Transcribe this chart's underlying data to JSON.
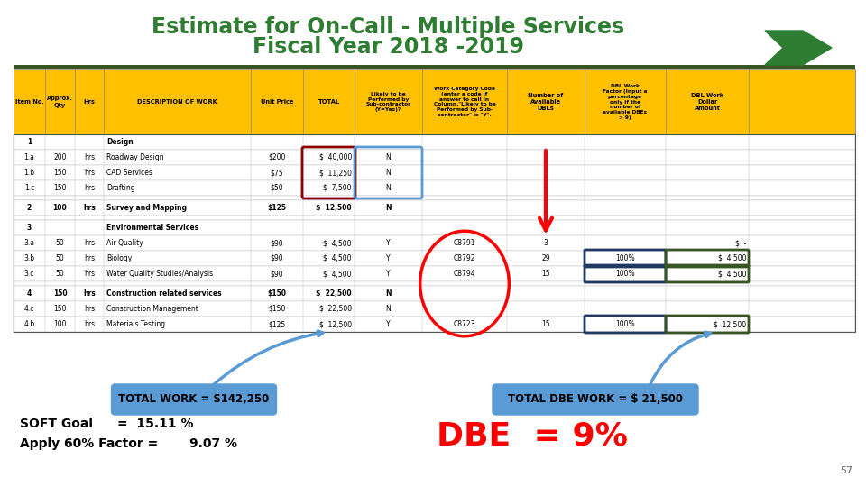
{
  "title_line1": "Estimate for On-Call - Multiple Services",
  "title_line2": "Fiscal Year 2018 -2019",
  "title_color": "#2E7D32",
  "bg_color": "#FFFFFF",
  "header_bg": "#FFC000",
  "rows": [
    {
      "item": "1",
      "qty": "",
      "hrs": "",
      "desc": "Design",
      "price": "",
      "total": "",
      "sub": "",
      "code": "",
      "avail": "",
      "factor": "",
      "amount": "",
      "bold": true
    },
    {
      "item": "1.a",
      "qty": "200",
      "hrs": "hrs",
      "desc": "Roadway Design",
      "price": "$200",
      "total": "$  40,000",
      "sub": "N",
      "code": "",
      "avail": "",
      "factor": "",
      "amount": ""
    },
    {
      "item": "1.b",
      "qty": "150",
      "hrs": "hrs",
      "desc": "CAD Services",
      "price": "$75",
      "total": "$  11,250",
      "sub": "N",
      "code": "",
      "avail": "",
      "factor": "",
      "amount": ""
    },
    {
      "item": "1.c",
      "qty": "150",
      "hrs": "hrs",
      "desc": "Drafting",
      "price": "$50",
      "total": "$  7,500",
      "sub": "N",
      "code": "",
      "avail": "",
      "factor": "",
      "amount": ""
    },
    {
      "item": "",
      "qty": "",
      "hrs": "",
      "desc": "",
      "price": "",
      "total": "",
      "sub": "",
      "code": "",
      "avail": "",
      "factor": "",
      "amount": "",
      "spacer": true
    },
    {
      "item": "2",
      "qty": "100",
      "hrs": "hrs",
      "desc": "Survey and Mapping",
      "price": "$125",
      "total": "$  12,500",
      "sub": "N",
      "code": "",
      "avail": "",
      "factor": "",
      "amount": "",
      "bold": true
    },
    {
      "item": "",
      "qty": "",
      "hrs": "",
      "desc": "",
      "price": "",
      "total": "",
      "sub": "",
      "code": "",
      "avail": "",
      "factor": "",
      "amount": "",
      "spacer": true
    },
    {
      "item": "3",
      "qty": "",
      "hrs": "",
      "desc": "Environmental Services",
      "price": "",
      "total": "",
      "sub": "",
      "code": "",
      "avail": "",
      "factor": "",
      "amount": "",
      "bold": true
    },
    {
      "item": "3.a",
      "qty": "50",
      "hrs": "hrs",
      "desc": "Air Quality",
      "price": "$90",
      "total": "$  4,500",
      "sub": "Y",
      "code": "C8791",
      "avail": "3",
      "factor": "",
      "amount": "$  -"
    },
    {
      "item": "3.b",
      "qty": "50",
      "hrs": "hrs",
      "desc": "Biology",
      "price": "$90",
      "total": "$  4,500",
      "sub": "Y",
      "code": "C8792",
      "avail": "29",
      "factor": "100%",
      "amount": "$  4,500"
    },
    {
      "item": "3.c",
      "qty": "50",
      "hrs": "hrs",
      "desc": "Water Quality Studies/Analysis",
      "price": "$90",
      "total": "$  4,500",
      "sub": "Y",
      "code": "C8794",
      "avail": "15",
      "factor": "100%",
      "amount": "$  4,500"
    },
    {
      "item": "",
      "qty": "",
      "hrs": "",
      "desc": "",
      "price": "",
      "total": "",
      "sub": "",
      "code": "",
      "avail": "",
      "factor": "",
      "amount": "",
      "spacer": true
    },
    {
      "item": "4",
      "qty": "150",
      "hrs": "hrs",
      "desc": "Construction related services",
      "price": "$150",
      "total": "$  22,500",
      "sub": "N",
      "code": "",
      "avail": "",
      "factor": "",
      "amount": "",
      "bold": true
    },
    {
      "item": "4.c",
      "qty": "150",
      "hrs": "hrs",
      "desc": "Construction Management",
      "price": "$150",
      "total": "$  22,500",
      "sub": "N",
      "code": "",
      "avail": "",
      "factor": "",
      "amount": ""
    },
    {
      "item": "4.b",
      "qty": "100",
      "hrs": "hrs",
      "desc": "Materials Testing",
      "price": "$125",
      "total": "$  12,500",
      "sub": "Y",
      "code": "C8723",
      "avail": "15",
      "factor": "100%",
      "amount": "$  12,500"
    }
  ],
  "total_work_label": "TOTAL WORK = $142,250",
  "total_dbe_label": "TOTAL DBE WORK = $ 21,500",
  "soft_goal_text1": "SOFT Goal",
  "soft_goal_text2": "=  15.11 %",
  "apply_factor_text1": "Apply 60% Factor =",
  "apply_factor_text2": "9.07 %",
  "dbe_text": "DBE  = 9%",
  "page_num": "57"
}
